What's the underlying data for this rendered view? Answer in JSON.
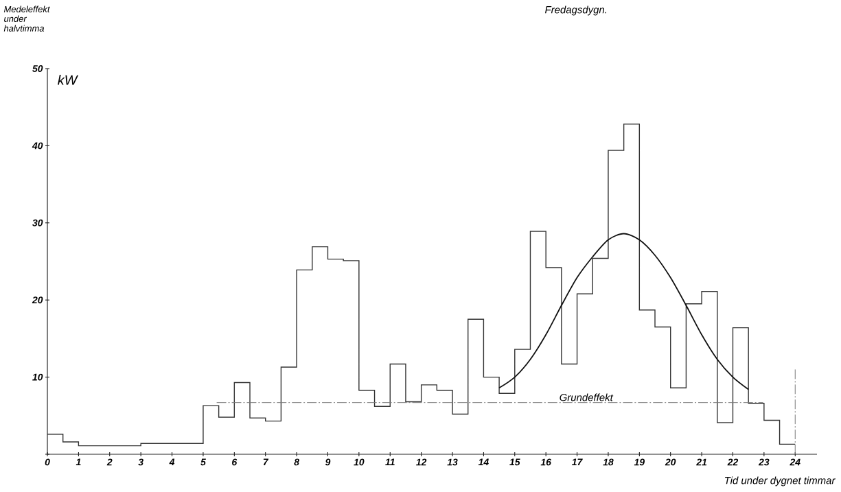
{
  "chart_data": {
    "type": "step",
    "title": "Fredagsdygn.",
    "ylabel": "Medeleffekt under halvtimma",
    "xlabel": "Tid under dygnet timmar",
    "annotations": [
      "kW"
    ],
    "series": [
      {
        "color": "#333333",
        "x": [
          0,
          0.5,
          1,
          1.5,
          2,
          2.5,
          3,
          3.5,
          4,
          4.5,
          5,
          5.5,
          6,
          6.5,
          7,
          7.5,
          8,
          8.5,
          9,
          9.5,
          10,
          10.5,
          11,
          11.5,
          12,
          12.5,
          13,
          13.5,
          14,
          14.5,
          15,
          15.5,
          16,
          16.5,
          17,
          17.5,
          18,
          18.5,
          19,
          19.5,
          20,
          20.5,
          21,
          21.5,
          22,
          22.5,
          23,
          23.5,
          24
        ],
        "values": [
          2.6,
          1.6,
          1.1,
          1.1,
          1.1,
          1.1,
          1.4,
          1.4,
          1.4,
          1.4,
          6.3,
          4.8,
          9.3,
          4.7,
          4.3,
          11.3,
          23.9,
          26.9,
          25.3,
          25.1,
          8.3,
          6.2,
          11.7,
          6.8,
          9.0,
          8.3,
          5.2,
          17.5,
          10.0,
          7.9,
          13.6,
          28.9,
          24.2,
          11.7,
          20.8,
          25.4,
          39.4,
          42.8,
          18.7,
          16.5,
          8.6,
          19.5,
          21.1,
          4.1,
          16.4,
          6.6,
          4.4,
          1.3,
          1.3
        ]
      },
      {
        "type": "line",
        "color": "#111111",
        "x": [
          14.5,
          15,
          15.5,
          16,
          16.5,
          17,
          17.5,
          18,
          18.5,
          19,
          19.5,
          20,
          20.5,
          21,
          21.5,
          22,
          22.5
        ],
        "values": [
          8.6,
          10.0,
          12.3,
          15.5,
          19.3,
          22.9,
          25.6,
          27.8,
          28.6,
          27.8,
          25.8,
          22.9,
          19.3,
          15.5,
          12.3,
          10.0,
          8.4
        ]
      }
    ],
    "ref_lines": [
      {
        "axis": "y",
        "value": 6.7,
        "label": "Grundeffekt",
        "line_style": "dashed",
        "color": "#777777"
      },
      {
        "axis": "x",
        "value": 24,
        "line_style": "dashed",
        "color": "#777777"
      }
    ],
    "xlim": [
      0,
      24.7
    ],
    "ylim": [
      0,
      50
    ],
    "xticks": [
      0,
      1,
      2,
      3,
      4,
      5,
      6,
      7,
      8,
      9,
      10,
      11,
      12,
      13,
      14,
      15,
      16,
      17,
      18,
      19,
      20,
      21,
      22,
      23,
      24
    ],
    "yticks": [
      {
        "value": 0,
        "label": null
      },
      10,
      20,
      30,
      40,
      50
    ]
  }
}
